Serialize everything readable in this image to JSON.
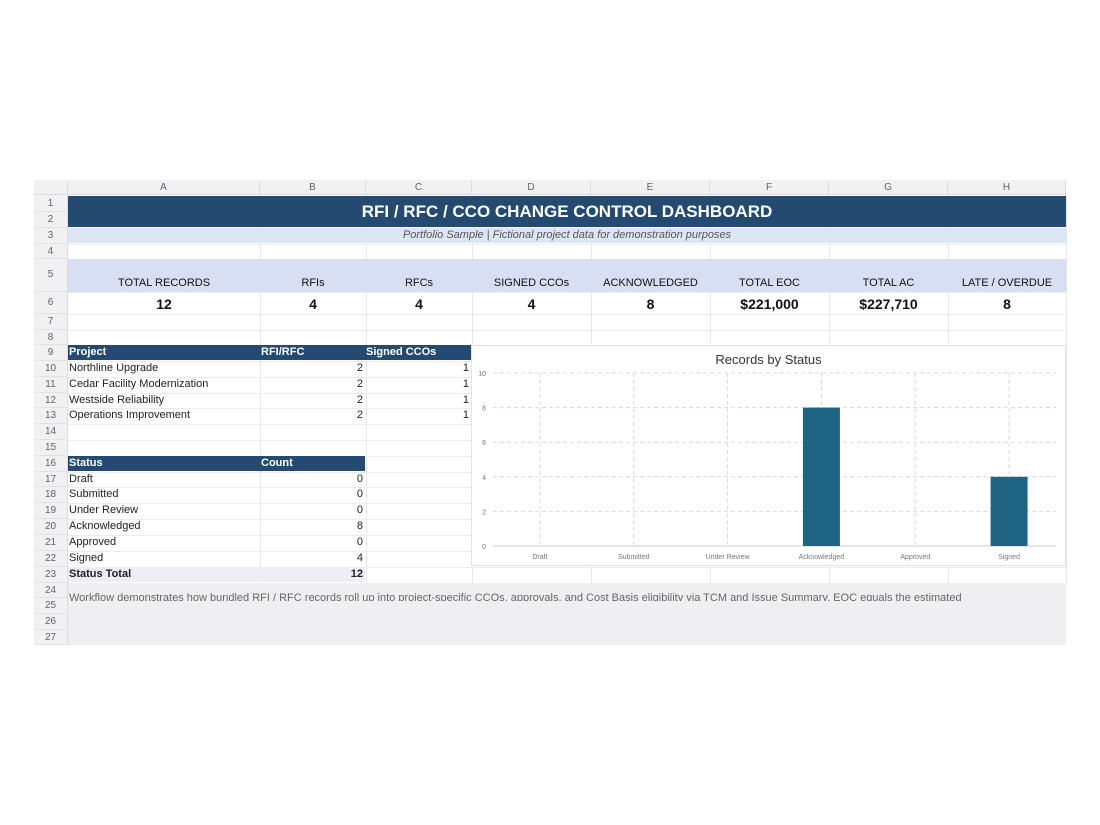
{
  "columns": [
    "A",
    "B",
    "C",
    "D",
    "E",
    "F",
    "G",
    "H"
  ],
  "rows": [
    "1",
    "2",
    "3",
    "4",
    "5",
    "6",
    "7",
    "8",
    "9",
    "10",
    "11",
    "12",
    "13",
    "14",
    "15",
    "16",
    "17",
    "18",
    "19",
    "20",
    "21",
    "22",
    "23",
    "24",
    "25",
    "26",
    "27"
  ],
  "title": "RFI / RFC / CCO CHANGE CONTROL DASHBOARD",
  "subtitle": "Portfolio Sample | Fictional project data for demonstration purposes",
  "kpis": [
    {
      "label": "TOTAL RECORDS",
      "value": "12"
    },
    {
      "label": "RFIs",
      "value": "4"
    },
    {
      "label": "RFCs",
      "value": "4"
    },
    {
      "label": "SIGNED CCOs",
      "value": "4"
    },
    {
      "label": "ACKNOWLEDGED",
      "value": "8"
    },
    {
      "label": "TOTAL EOC",
      "value": "$221,000"
    },
    {
      "label": "TOTAL AC",
      "value": "$227,710"
    },
    {
      "label": "LATE / OVERDUE",
      "value": "8"
    }
  ],
  "project_table": {
    "headers": [
      "Project",
      "RFI/RFC",
      "Signed CCOs"
    ],
    "rows": [
      [
        "Northline Upgrade",
        "2",
        "1"
      ],
      [
        "Cedar Facility Modernization",
        "2",
        "1"
      ],
      [
        "Westside Reliability",
        "2",
        "1"
      ],
      [
        "Operations Improvement",
        "2",
        "1"
      ]
    ]
  },
  "status_table": {
    "headers": [
      "Status",
      "Count"
    ],
    "rows": [
      [
        "Draft",
        "0"
      ],
      [
        "Submitted",
        "0"
      ],
      [
        "Under Review",
        "0"
      ],
      [
        "Acknowledged",
        "8"
      ],
      [
        "Approved",
        "0"
      ],
      [
        "Signed",
        "4"
      ]
    ],
    "total_label": "Status Total",
    "total_value": "12"
  },
  "note": "Workflow demonstrates how bundled RFI / RFC records roll up into project-specific CCOs, approvals, and Cost Basis eligibility via TCM and Issue Summary. EOC equals the estimated",
  "chart_data": {
    "type": "bar",
    "title": "Records by Status",
    "categories": [
      "Draft",
      "Submitted",
      "Under Review",
      "Acknowledged",
      "Approved",
      "Signed"
    ],
    "values": [
      0,
      0,
      0,
      8,
      0,
      4
    ],
    "ylim": [
      0,
      10
    ],
    "yticks": [
      0,
      2,
      4,
      6,
      8,
      10
    ],
    "grid": true,
    "bar_color": "#1f6482",
    "xlabel": "",
    "ylabel": ""
  }
}
